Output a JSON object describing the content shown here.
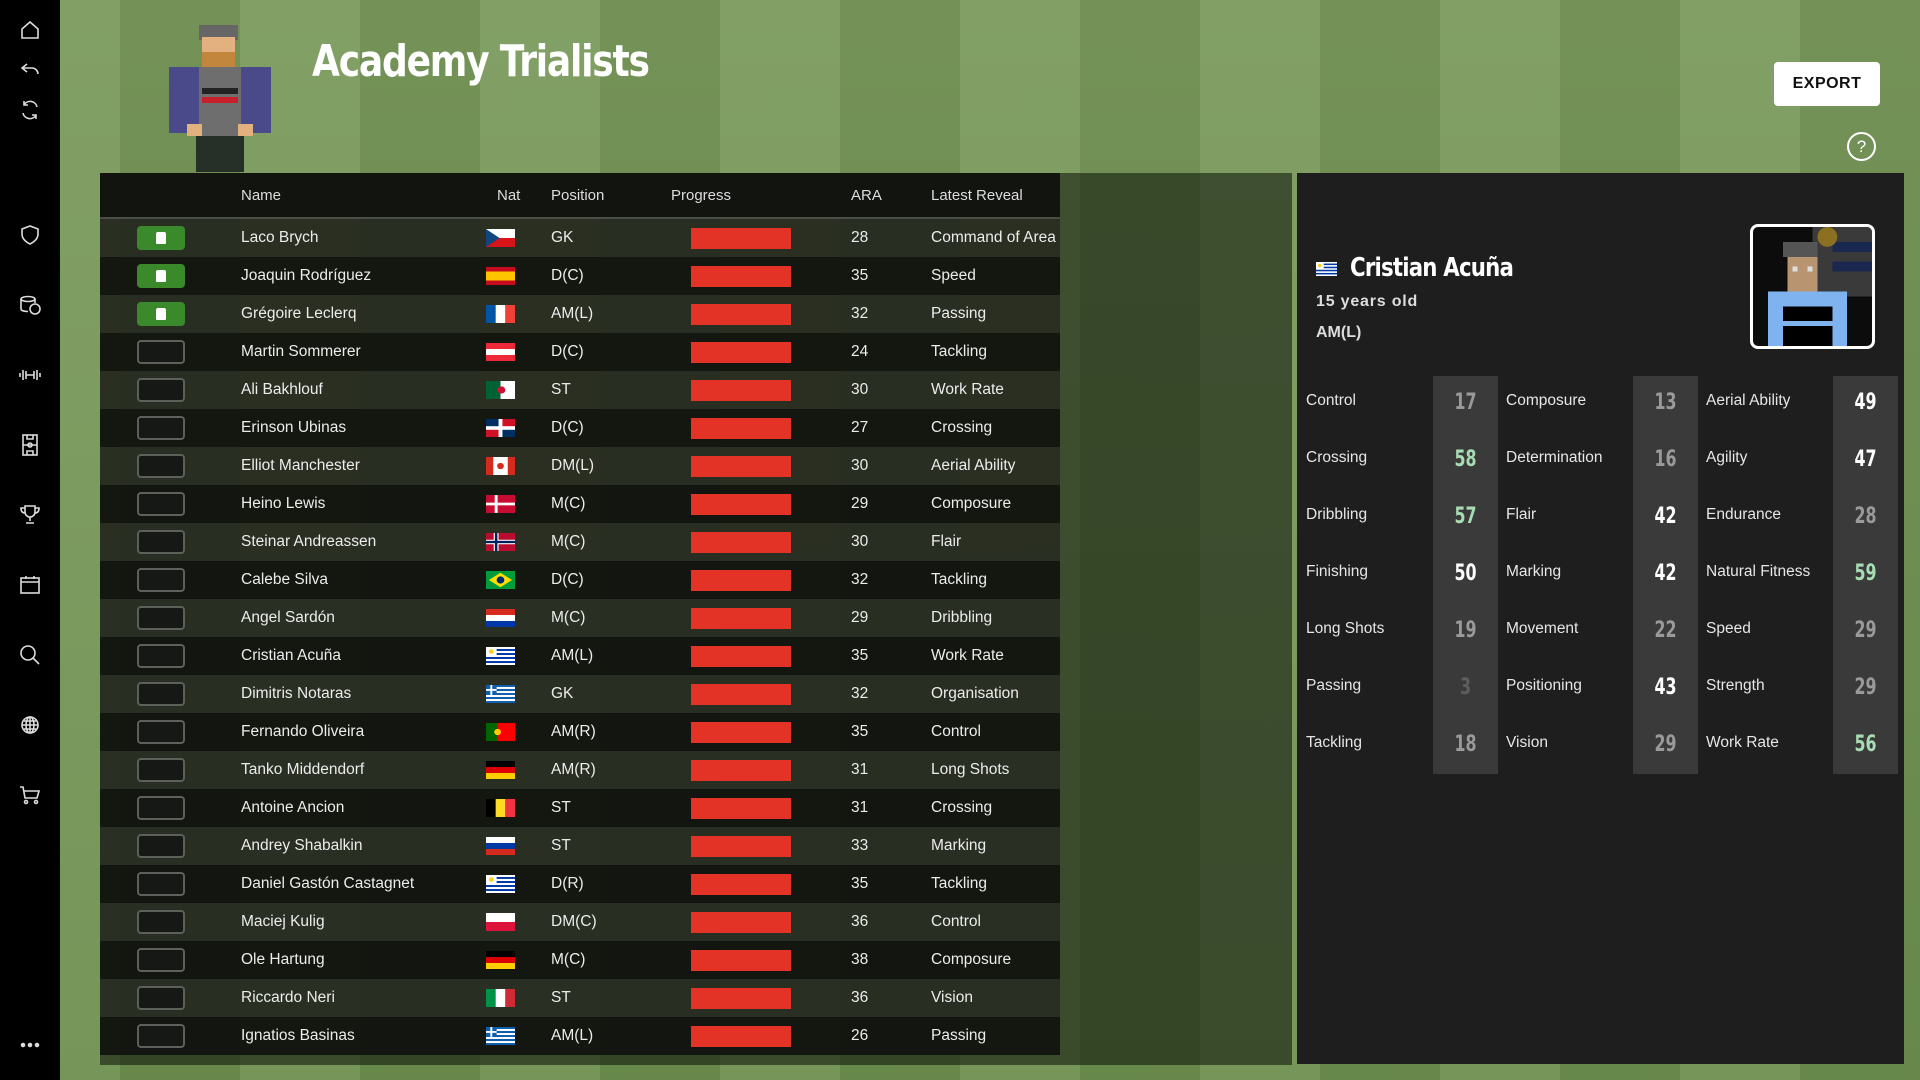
{
  "page": {
    "title": "Academy Trialists",
    "export_label": "EXPORT",
    "help_label": "?"
  },
  "sidebar": {
    "items": [
      {
        "icon": "home-icon"
      },
      {
        "icon": "undo-icon"
      },
      {
        "icon": "refresh-icon"
      },
      {
        "icon": "shield-icon"
      },
      {
        "icon": "finance-icon"
      },
      {
        "icon": "training-icon"
      },
      {
        "icon": "pitch-icon"
      },
      {
        "icon": "trophy-icon"
      },
      {
        "icon": "calendar-icon"
      },
      {
        "icon": "search-icon"
      },
      {
        "icon": "globe-icon"
      },
      {
        "icon": "cart-icon"
      },
      {
        "icon": "more-icon"
      }
    ]
  },
  "table": {
    "headers": {
      "name": "Name",
      "nat": "Nat",
      "position": "Position",
      "progress": "Progress",
      "ara": "ARA",
      "latest_reveal": "Latest Reveal"
    },
    "rows": [
      {
        "signed": true,
        "name": "Laco Brych",
        "nat": "CZE",
        "position": "GK",
        "progress": 1,
        "ara": "28",
        "reveal": "Command of Area"
      },
      {
        "signed": true,
        "name": "Joaquin Rodríguez",
        "nat": "ESP",
        "position": "D(C)",
        "progress": 1,
        "ara": "35",
        "reveal": "Speed"
      },
      {
        "signed": true,
        "name": "Grégoire Leclerq",
        "nat": "FRA",
        "position": "AM(L)",
        "progress": 1,
        "ara": "32",
        "reveal": "Passing"
      },
      {
        "signed": false,
        "name": "Martin Sommerer",
        "nat": "AUT",
        "position": "D(C)",
        "progress": 1,
        "ara": "24",
        "reveal": "Tackling"
      },
      {
        "signed": false,
        "name": "Ali Bakhlouf",
        "nat": "ALG",
        "position": "ST",
        "progress": 1,
        "ara": "30",
        "reveal": "Work Rate"
      },
      {
        "signed": false,
        "name": "Erinson Ubinas",
        "nat": "DOM",
        "position": "D(C)",
        "progress": 1,
        "ara": "27",
        "reveal": "Crossing"
      },
      {
        "signed": false,
        "name": "Elliot Manchester",
        "nat": "CAN",
        "position": "DM(L)",
        "progress": 1,
        "ara": "30",
        "reveal": "Aerial Ability"
      },
      {
        "signed": false,
        "name": "Heino Lewis",
        "nat": "DEN",
        "position": "M(C)",
        "progress": 1,
        "ara": "29",
        "reveal": "Composure"
      },
      {
        "signed": false,
        "name": "Steinar Andreassen",
        "nat": "NOR",
        "position": "M(C)",
        "progress": 1,
        "ara": "30",
        "reveal": "Flair"
      },
      {
        "signed": false,
        "name": "Calebe Silva",
        "nat": "BRA",
        "position": "D(C)",
        "progress": 1,
        "ara": "32",
        "reveal": "Tackling"
      },
      {
        "signed": false,
        "name": "Angel Sardón",
        "nat": "PAR",
        "position": "M(C)",
        "progress": 1,
        "ara": "29",
        "reveal": "Dribbling"
      },
      {
        "signed": false,
        "name": "Cristian Acuña",
        "nat": "URU",
        "position": "AM(L)",
        "progress": 1,
        "ara": "35",
        "reveal": "Work Rate"
      },
      {
        "signed": false,
        "name": "Dimitris Notaras",
        "nat": "GRE",
        "position": "GK",
        "progress": 1,
        "ara": "32",
        "reveal": "Organisation"
      },
      {
        "signed": false,
        "name": "Fernando Oliveira",
        "nat": "POR",
        "position": "AM(R)",
        "progress": 1,
        "ara": "35",
        "reveal": "Control"
      },
      {
        "signed": false,
        "name": "Tanko Middendorf",
        "nat": "GER",
        "position": "AM(R)",
        "progress": 1,
        "ara": "31",
        "reveal": "Long Shots"
      },
      {
        "signed": false,
        "name": "Antoine Ancion",
        "nat": "BEL",
        "position": "ST",
        "progress": 1,
        "ara": "31",
        "reveal": "Crossing"
      },
      {
        "signed": false,
        "name": "Andrey Shabalkin",
        "nat": "RUS",
        "position": "ST",
        "progress": 1,
        "ara": "33",
        "reveal": "Marking"
      },
      {
        "signed": false,
        "name": "Daniel Gastón Castagnet",
        "nat": "URU",
        "position": "D(R)",
        "progress": 1,
        "ara": "35",
        "reveal": "Tackling"
      },
      {
        "signed": false,
        "name": "Maciej Kulig",
        "nat": "POL",
        "position": "DM(C)",
        "progress": 1,
        "ara": "36",
        "reveal": "Control"
      },
      {
        "signed": false,
        "name": "Ole Hartung",
        "nat": "GER",
        "position": "M(C)",
        "progress": 1,
        "ara": "38",
        "reveal": "Composure"
      },
      {
        "signed": false,
        "name": "Riccardo Neri",
        "nat": "ITA",
        "position": "ST",
        "progress": 1,
        "ara": "36",
        "reveal": "Vision"
      },
      {
        "signed": false,
        "name": "Ignatios Basinas",
        "nat": "GRE",
        "position": "AM(L)",
        "progress": 1,
        "ara": "26",
        "reveal": "Passing"
      }
    ]
  },
  "detail": {
    "name": "Cristian Acuña",
    "nat": "URU",
    "age": "15 years old",
    "position": "AM(L)",
    "stat_columns": [
      [
        {
          "label": "Control",
          "value": 17
        },
        {
          "label": "Crossing",
          "value": 58
        },
        {
          "label": "Dribbling",
          "value": 57
        },
        {
          "label": "Finishing",
          "value": 50
        },
        {
          "label": "Long Shots",
          "value": 19
        },
        {
          "label": "Passing",
          "value": 3
        },
        {
          "label": "Tackling",
          "value": 18
        }
      ],
      [
        {
          "label": "Composure",
          "value": 13
        },
        {
          "label": "Determination",
          "value": 16
        },
        {
          "label": "Flair",
          "value": 42
        },
        {
          "label": "Marking",
          "value": 42
        },
        {
          "label": "Movement",
          "value": 22
        },
        {
          "label": "Positioning",
          "value": 43
        },
        {
          "label": "Vision",
          "value": 29
        }
      ],
      [
        {
          "label": "Aerial Ability",
          "value": 49
        },
        {
          "label": "Agility",
          "value": 47
        },
        {
          "label": "Endurance",
          "value": 28
        },
        {
          "label": "Natural Fitness",
          "value": 59
        },
        {
          "label": "Speed",
          "value": 29
        },
        {
          "label": "Strength",
          "value": 29
        },
        {
          "label": "Work Rate",
          "value": 56
        }
      ]
    ]
  },
  "colors": {
    "progress": "#e33326",
    "signed": "#3a8a2c",
    "high": "#a8dcb2",
    "mid": "#ffffff",
    "low": "#9a9a9a",
    "very_low": "#5e5e5e"
  }
}
